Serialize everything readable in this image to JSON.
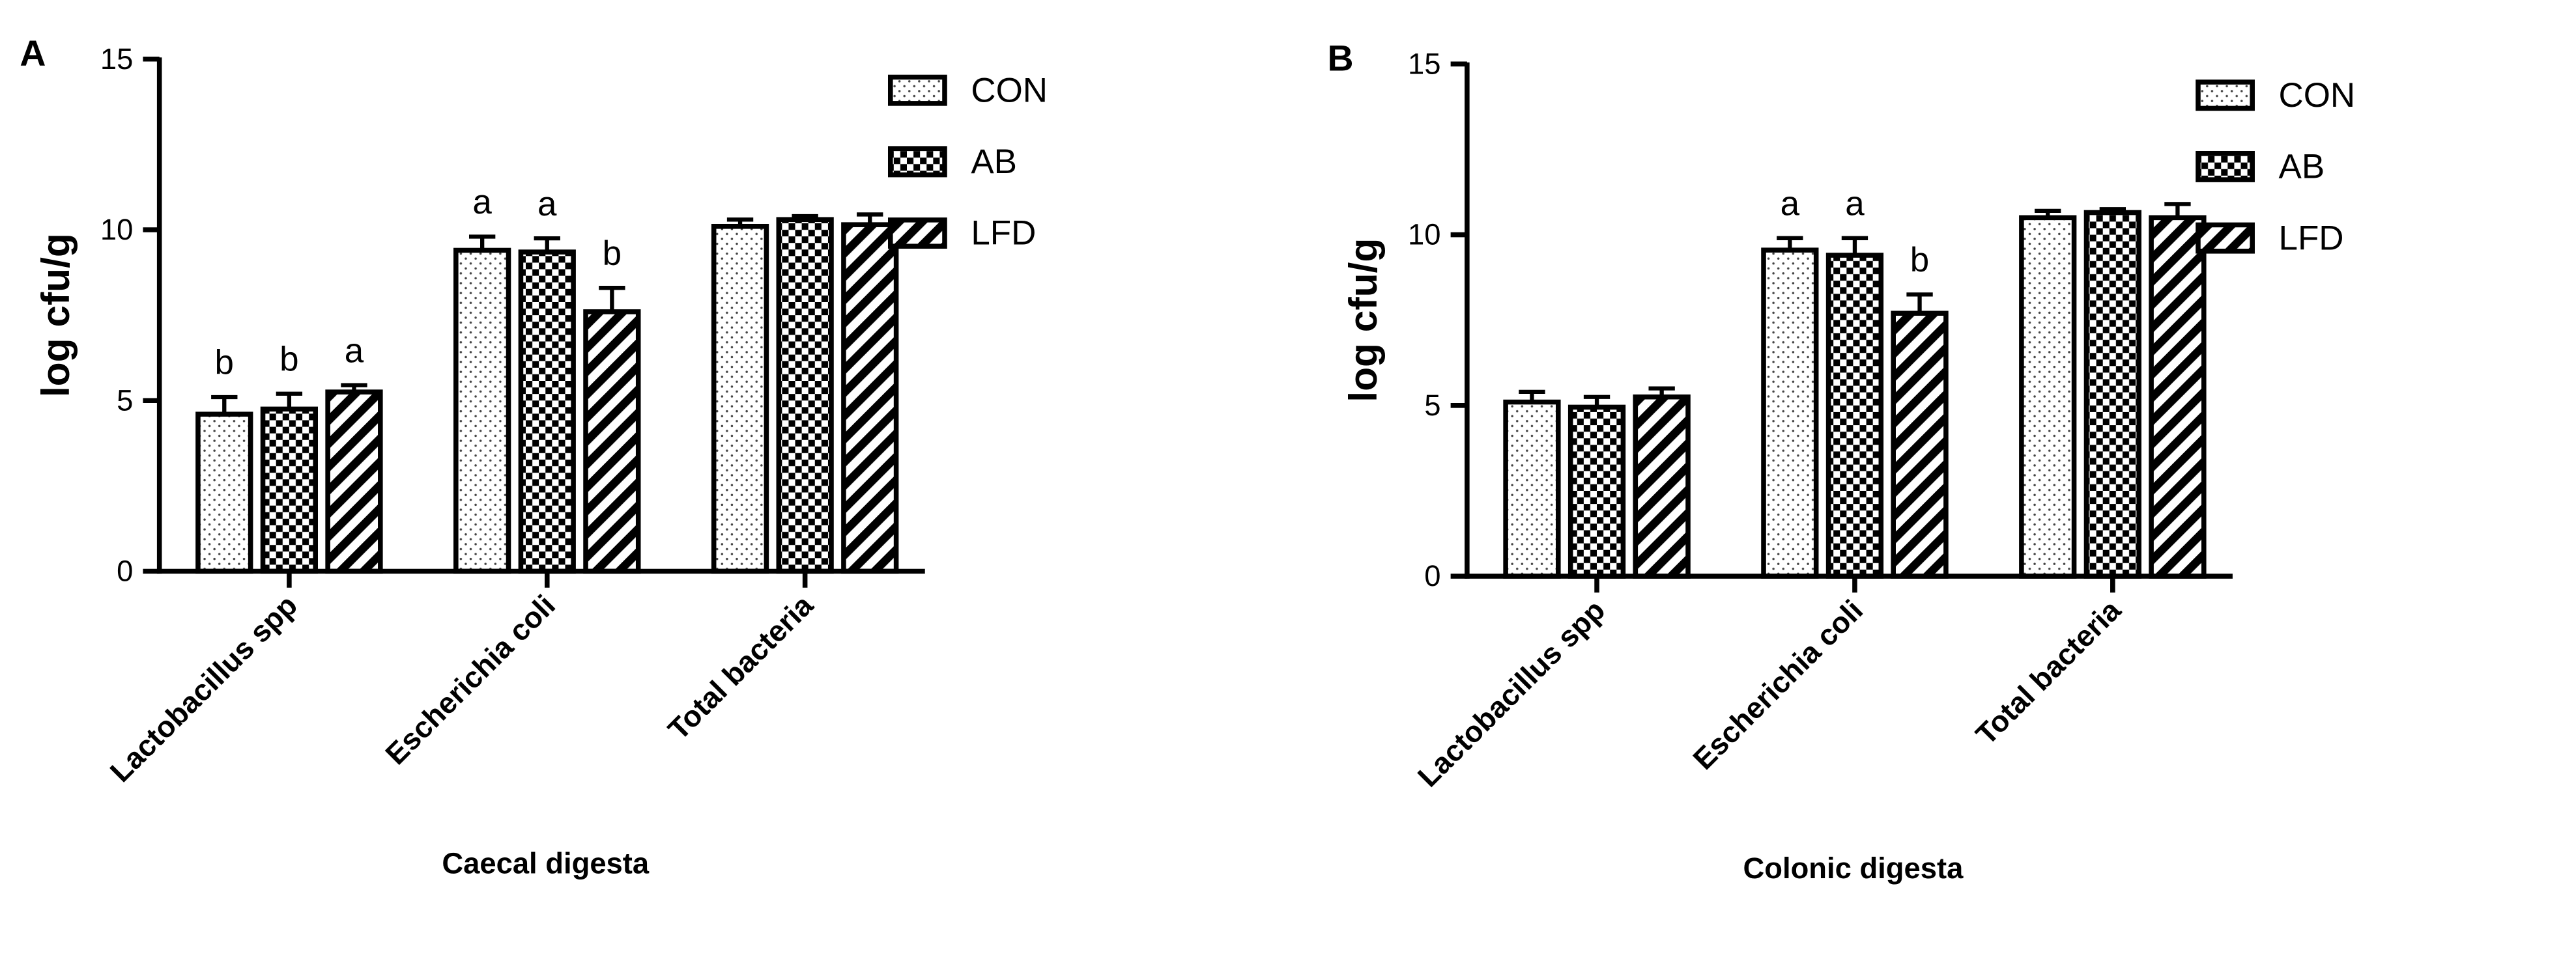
{
  "chart_data": [
    {
      "type": "bar",
      "panel_label": "A",
      "y_label": "log cfu/g",
      "x_label": "Caecal digesta",
      "categories": [
        "Lactobacillus spp",
        "Escherichia coli",
        "Total bacteria"
      ],
      "ylim": [
        0,
        15
      ],
      "yticks": [
        0,
        5,
        10,
        15
      ],
      "series": [
        {
          "name": "CON",
          "color": "#000000",
          "pattern": "dots",
          "values": [
            4.6,
            9.4,
            10.1
          ],
          "errors": [
            0.5,
            0.4,
            0.2
          ],
          "annotations": [
            "b",
            "a",
            null
          ]
        },
        {
          "name": "AB",
          "color": "#000000",
          "pattern": "checker",
          "values": [
            4.75,
            9.35,
            10.3
          ],
          "errors": [
            0.45,
            0.4,
            0.1
          ],
          "annotations": [
            "b",
            "a",
            null
          ]
        },
        {
          "name": "LFD",
          "color": "#000000",
          "pattern": "diagonal",
          "values": [
            5.25,
            7.6,
            10.15
          ],
          "errors": [
            0.2,
            0.7,
            0.3
          ],
          "annotations": [
            "a",
            "b",
            null
          ]
        }
      ]
    },
    {
      "type": "bar",
      "panel_label": "B",
      "y_label": "log cfu/g",
      "x_label": "Colonic digesta",
      "categories": [
        "Lactobacillus spp",
        "Escherichia coli",
        "Total bacteria"
      ],
      "ylim": [
        0,
        15
      ],
      "yticks": [
        0,
        5,
        10,
        15
      ],
      "series": [
        {
          "name": "CON",
          "color": "#000000",
          "pattern": "dots",
          "values": [
            5.1,
            9.55,
            10.5
          ],
          "errors": [
            0.3,
            0.35,
            0.2
          ],
          "annotations": [
            null,
            "a",
            null
          ]
        },
        {
          "name": "AB",
          "color": "#000000",
          "pattern": "checker",
          "values": [
            4.95,
            9.4,
            10.65
          ],
          "errors": [
            0.3,
            0.5,
            0.1
          ],
          "annotations": [
            null,
            "a",
            null
          ]
        },
        {
          "name": "LFD",
          "color": "#000000",
          "pattern": "diagonal",
          "values": [
            5.25,
            7.7,
            10.5
          ],
          "errors": [
            0.25,
            0.55,
            0.4
          ],
          "annotations": [
            null,
            "b",
            null
          ]
        }
      ]
    }
  ]
}
